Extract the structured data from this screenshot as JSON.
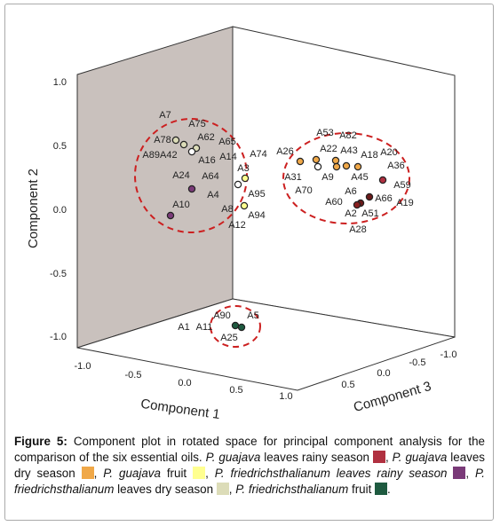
{
  "figure": {
    "axes": {
      "y": {
        "title": "Component 2",
        "ticks": [
          "1.0",
          "0.5",
          "0.0",
          "-0.5",
          "-1.0"
        ]
      },
      "x": {
        "title": "Component 1",
        "ticks": [
          "-1.0",
          "-0.5",
          "0.0",
          "0.5",
          "1.0"
        ]
      },
      "z": {
        "title": "Component 3",
        "ticks": [
          "0.5",
          "0.0",
          "-0.5",
          "-1.0"
        ]
      }
    },
    "point_labels": [
      "A7",
      "A75",
      "A78",
      "A62",
      "A65",
      "A89A42",
      "A16",
      "A14",
      "A74",
      "A3",
      "A24",
      "A64",
      "A95",
      "A4",
      "A8",
      "A10",
      "A12",
      "A94",
      "A26",
      "A53",
      "A82",
      "A22",
      "A43",
      "A18",
      "A20",
      "A36",
      "A31",
      "A9",
      "A45",
      "A70",
      "A59",
      "A6",
      "A60",
      "A66",
      "A19",
      "A2",
      "A51",
      "A28",
      "A90",
      "A5",
      "A1",
      "A11",
      "A25"
    ]
  },
  "caption": {
    "segments": [
      {
        "text": "Figure 5:",
        "style": "bold"
      },
      {
        "text": " Component plot in rotated space for principal component analysis for the comparison of the six essential oils. "
      },
      {
        "text": "P. guajava",
        "style": "italic"
      },
      {
        "text": " leaves rainy season "
      },
      {
        "swatch": "#b03040"
      },
      {
        "text": ", "
      },
      {
        "text": "P. guajava",
        "style": "italic"
      },
      {
        "text": " leaves dry season "
      },
      {
        "swatch": "#f0a848"
      },
      {
        "text": ", "
      },
      {
        "text": "P. guajava",
        "style": "italic"
      },
      {
        "text": " fruit "
      },
      {
        "swatch": "#ffff90"
      },
      {
        "text": ", "
      },
      {
        "text": "P. friedrichsthalianum leaves rainy season",
        "style": "italic"
      },
      {
        "text": " "
      },
      {
        "swatch": "#7a3a78"
      },
      {
        "text": ", "
      },
      {
        "text": "P. friedrichsthalianum",
        "style": "italic"
      },
      {
        "text": " leaves dry season "
      },
      {
        "swatch": "#dcdcb8"
      },
      {
        "text": ", "
      },
      {
        "text": "P. friedrichsthalianum",
        "style": "italic"
      },
      {
        "text": " fruit "
      },
      {
        "swatch": "#1e5a40"
      },
      {
        "text": "."
      }
    ]
  }
}
